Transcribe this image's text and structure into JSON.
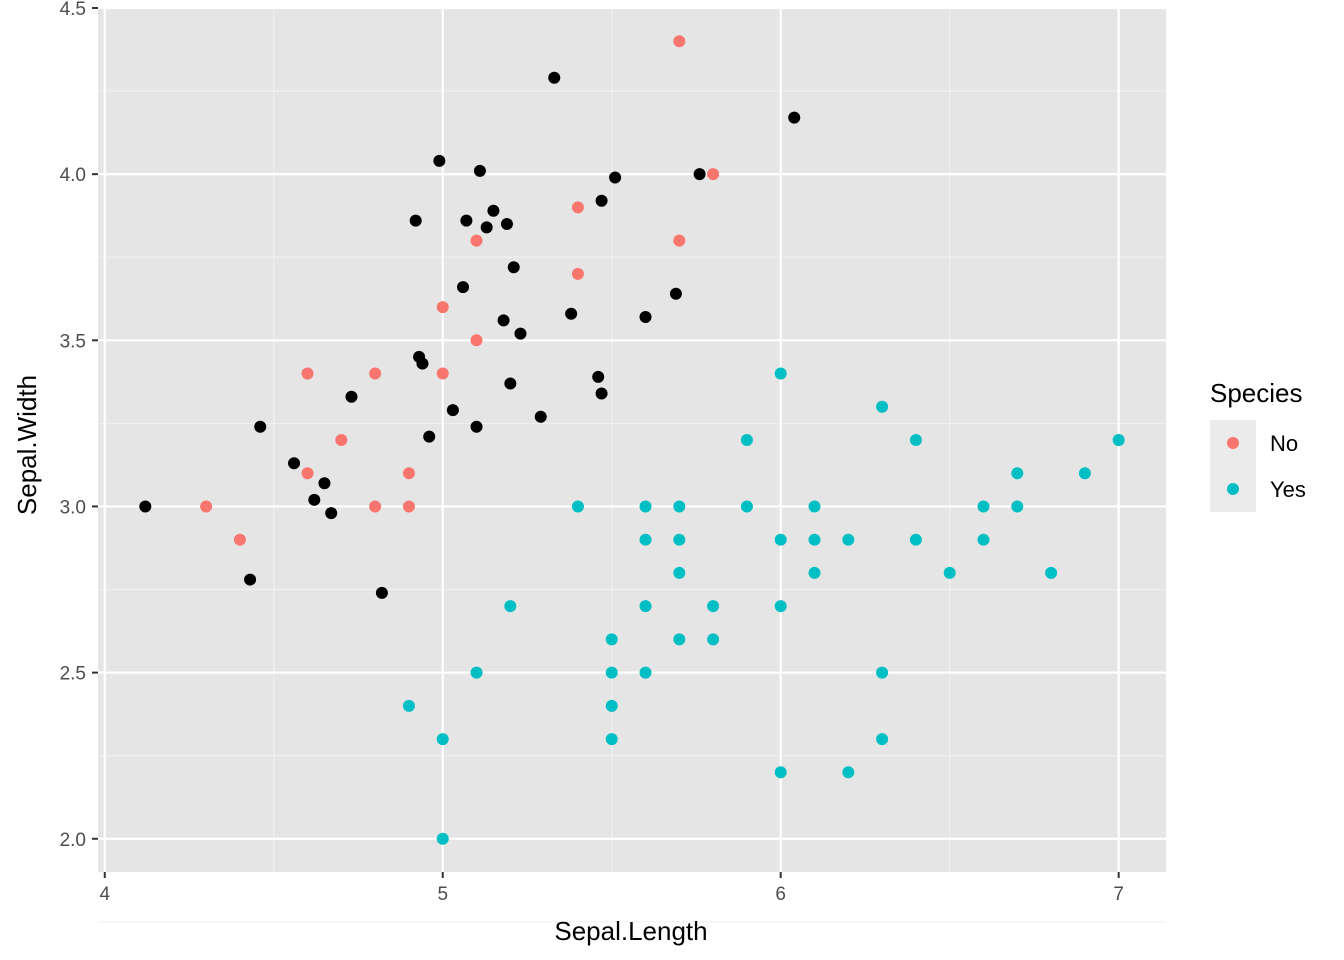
{
  "chart_data": {
    "type": "scatter",
    "xlabel": "Sepal.Length",
    "ylabel": "Sepal.Width",
    "xlim": [
      3.98,
      7.14
    ],
    "ylim": [
      1.9,
      4.5
    ],
    "x_ticks": [
      4,
      5,
      6,
      7
    ],
    "y_ticks": [
      2.0,
      2.5,
      3.0,
      3.5,
      4.0,
      4.5
    ],
    "x_tick_labels": [
      "4",
      "5",
      "6",
      "7"
    ],
    "y_tick_labels": [
      "2.0",
      "2.5",
      "3.0",
      "3.5",
      "4.0",
      "4.5"
    ],
    "grid": true,
    "background": "#E5E5E5",
    "legend": {
      "title": "Species",
      "placement": "right",
      "entries": [
        {
          "label": "No",
          "color": "#F8766D"
        },
        {
          "label": "Yes",
          "color": "#00BFC4"
        }
      ]
    },
    "series": [
      {
        "name": "No",
        "color": "#F8766D",
        "points": [
          [
            5.7,
            4.4
          ],
          [
            5.8,
            4.0
          ],
          [
            5.4,
            3.9
          ],
          [
            5.1,
            3.8
          ],
          [
            5.7,
            3.8
          ],
          [
            5.4,
            3.7
          ],
          [
            5.0,
            3.6
          ],
          [
            5.1,
            3.5
          ],
          [
            4.6,
            3.4
          ],
          [
            4.8,
            3.4
          ],
          [
            5.0,
            3.4
          ],
          [
            4.7,
            3.2
          ],
          [
            4.6,
            3.1
          ],
          [
            4.9,
            3.1
          ],
          [
            4.3,
            3.0
          ],
          [
            4.8,
            3.0
          ],
          [
            4.9,
            3.0
          ],
          [
            4.4,
            2.9
          ]
        ]
      },
      {
        "name": "Yes",
        "color": "#00BFC4",
        "points": [
          [
            6.0,
            3.4
          ],
          [
            6.3,
            3.3
          ],
          [
            5.9,
            3.2
          ],
          [
            6.4,
            3.2
          ],
          [
            7.0,
            3.2
          ],
          [
            6.7,
            3.1
          ],
          [
            6.9,
            3.1
          ],
          [
            5.4,
            3.0
          ],
          [
            5.6,
            3.0
          ],
          [
            5.7,
            3.0
          ],
          [
            5.9,
            3.0
          ],
          [
            6.1,
            3.0
          ],
          [
            6.6,
            3.0
          ],
          [
            6.7,
            3.0
          ],
          [
            5.6,
            2.9
          ],
          [
            5.7,
            2.9
          ],
          [
            6.0,
            2.9
          ],
          [
            6.1,
            2.9
          ],
          [
            6.2,
            2.9
          ],
          [
            6.4,
            2.9
          ],
          [
            6.6,
            2.9
          ],
          [
            5.7,
            2.8
          ],
          [
            6.1,
            2.8
          ],
          [
            6.5,
            2.8
          ],
          [
            6.8,
            2.8
          ],
          [
            5.2,
            2.7
          ],
          [
            5.6,
            2.7
          ],
          [
            5.8,
            2.7
          ],
          [
            6.0,
            2.7
          ],
          [
            5.5,
            2.6
          ],
          [
            5.7,
            2.6
          ],
          [
            5.8,
            2.6
          ],
          [
            5.1,
            2.5
          ],
          [
            5.5,
            2.5
          ],
          [
            5.6,
            2.5
          ],
          [
            6.3,
            2.5
          ],
          [
            4.9,
            2.4
          ],
          [
            5.5,
            2.4
          ],
          [
            5.0,
            2.3
          ],
          [
            5.5,
            2.3
          ],
          [
            6.3,
            2.3
          ],
          [
            6.0,
            2.2
          ],
          [
            6.2,
            2.2
          ],
          [
            5.0,
            2.0
          ]
        ]
      },
      {
        "name": "",
        "color": "#000000",
        "points": [
          [
            5.33,
            4.29
          ],
          [
            6.04,
            4.17
          ],
          [
            4.99,
            4.04
          ],
          [
            5.11,
            4.01
          ],
          [
            5.51,
            3.99
          ],
          [
            5.76,
            4.0
          ],
          [
            5.47,
            3.92
          ],
          [
            4.92,
            3.86
          ],
          [
            5.07,
            3.86
          ],
          [
            5.15,
            3.89
          ],
          [
            5.13,
            3.84
          ],
          [
            5.19,
            3.85
          ],
          [
            5.21,
            3.72
          ],
          [
            5.06,
            3.66
          ],
          [
            5.69,
            3.64
          ],
          [
            5.38,
            3.58
          ],
          [
            5.6,
            3.57
          ],
          [
            5.18,
            3.56
          ],
          [
            5.23,
            3.52
          ],
          [
            4.93,
            3.45
          ],
          [
            4.94,
            3.43
          ],
          [
            5.46,
            3.39
          ],
          [
            5.2,
            3.37
          ],
          [
            5.47,
            3.34
          ],
          [
            4.73,
            3.33
          ],
          [
            5.03,
            3.29
          ],
          [
            5.29,
            3.27
          ],
          [
            4.46,
            3.24
          ],
          [
            5.1,
            3.24
          ],
          [
            4.96,
            3.21
          ],
          [
            4.56,
            3.13
          ],
          [
            4.65,
            3.07
          ],
          [
            4.62,
            3.02
          ],
          [
            4.67,
            2.98
          ],
          [
            4.12,
            3.0
          ],
          [
            4.43,
            2.78
          ],
          [
            4.82,
            2.74
          ]
        ]
      }
    ]
  }
}
